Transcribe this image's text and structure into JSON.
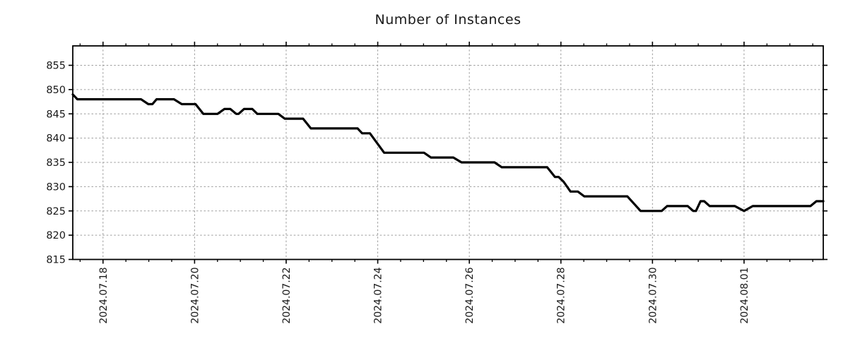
{
  "colors": {
    "background": "#ffffff",
    "line": "#000000",
    "grid": "#9c9c9c",
    "frame": "#000000",
    "text": "#1a1a1a"
  },
  "chart_data": {
    "type": "line",
    "title": "Number of Instances",
    "xlabel": "",
    "ylabel": "",
    "x_unit_note": "t = days since 2024-07-18 00:00",
    "xlim": [
      -0.66,
      15.73
    ],
    "ylim": [
      815,
      859
    ],
    "y_ticks": [
      815,
      820,
      825,
      830,
      835,
      840,
      845,
      850,
      855
    ],
    "x_major_ticks": [
      {
        "t": 0,
        "label": "2024.07.18"
      },
      {
        "t": 2,
        "label": "2024.07.20"
      },
      {
        "t": 4,
        "label": "2024.07.22"
      },
      {
        "t": 6,
        "label": "2024.07.24"
      },
      {
        "t": 8,
        "label": "2024.07.26"
      },
      {
        "t": 10,
        "label": "2024.07.28"
      },
      {
        "t": 12,
        "label": "2024.07.30"
      },
      {
        "t": 14,
        "label": "2024.08.01"
      }
    ],
    "x_minor_tick_interval": 0.5,
    "grid": {
      "show": true,
      "style": "dashed",
      "on": "major-ticks-both-axes"
    },
    "legend": "none",
    "series": [
      {
        "name": "Number of Instances",
        "color": "#000000",
        "line_width": 3.2,
        "points": [
          [
            -0.66,
            849
          ],
          [
            -0.56,
            848
          ],
          [
            0.83,
            848
          ],
          [
            0.99,
            847
          ],
          [
            1.08,
            847
          ],
          [
            1.17,
            848
          ],
          [
            1.55,
            848
          ],
          [
            1.72,
            847
          ],
          [
            2.02,
            847
          ],
          [
            2.19,
            845
          ],
          [
            2.5,
            845
          ],
          [
            2.65,
            846
          ],
          [
            2.78,
            846
          ],
          [
            2.91,
            845
          ],
          [
            2.96,
            845
          ],
          [
            3.08,
            846
          ],
          [
            3.26,
            846
          ],
          [
            3.37,
            845
          ],
          [
            3.83,
            845
          ],
          [
            3.97,
            844
          ],
          [
            4.37,
            844
          ],
          [
            4.54,
            842
          ],
          [
            5.56,
            842
          ],
          [
            5.66,
            841
          ],
          [
            5.83,
            841
          ],
          [
            6.14,
            837
          ],
          [
            7.01,
            837
          ],
          [
            7.16,
            836
          ],
          [
            7.65,
            836
          ],
          [
            7.83,
            835
          ],
          [
            8.55,
            835
          ],
          [
            8.71,
            834
          ],
          [
            9.7,
            834
          ],
          [
            9.87,
            832
          ],
          [
            9.95,
            832
          ],
          [
            10.06,
            831
          ],
          [
            10.21,
            829
          ],
          [
            10.37,
            829
          ],
          [
            10.51,
            828
          ],
          [
            11.45,
            828
          ],
          [
            11.74,
            825
          ],
          [
            12.2,
            825
          ],
          [
            12.32,
            826
          ],
          [
            12.77,
            826
          ],
          [
            12.89,
            825
          ],
          [
            12.95,
            825
          ],
          [
            13.05,
            827
          ],
          [
            13.13,
            827
          ],
          [
            13.25,
            826
          ],
          [
            13.8,
            826
          ],
          [
            14.0,
            825
          ],
          [
            14.19,
            826
          ],
          [
            15.45,
            826
          ],
          [
            15.58,
            827
          ],
          [
            15.73,
            827
          ]
        ]
      }
    ]
  }
}
